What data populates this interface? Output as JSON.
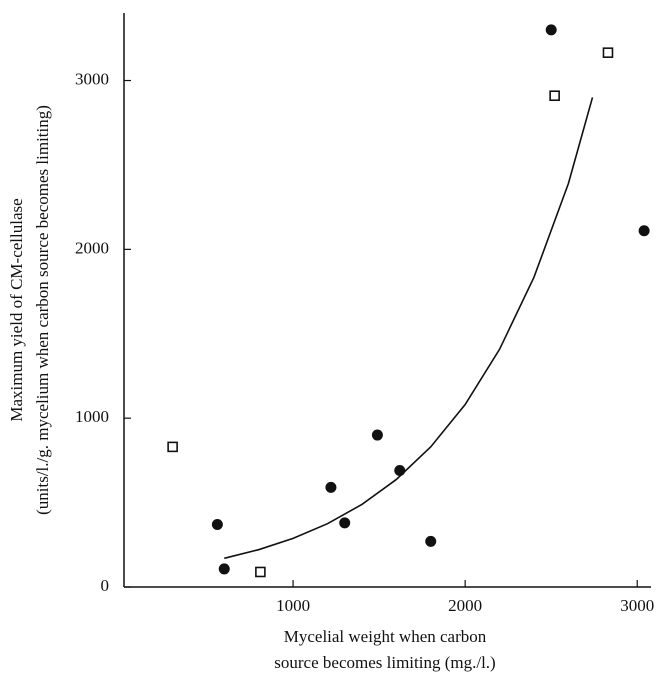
{
  "chart_data": {
    "type": "scatter",
    "xlabel": [
      "Mycelial weight when carbon",
      "source becomes limiting (mg./l.)"
    ],
    "ylabel": [
      "Maximum yield of CM-cellulase",
      "(units/l./g. mycelium when carbon source becomes limiting)"
    ],
    "xlim": [
      0,
      3080
    ],
    "ylim": [
      0,
      3400
    ],
    "xticks": [
      1000,
      2000,
      3000
    ],
    "yticks": [
      0,
      1000,
      2000,
      3000
    ],
    "color": "#111111",
    "series": [
      {
        "marker": "circle",
        "x": [
          2500,
          3040,
          1490,
          1620,
          1220,
          1300,
          560,
          600,
          1800
        ],
        "values": [
          3300,
          2110,
          900,
          690,
          590,
          380,
          370,
          107,
          270
        ]
      },
      {
        "marker": "square",
        "x": [
          300,
          810,
          2520,
          2830
        ],
        "values": [
          830,
          89,
          2910,
          3165
        ]
      },
      {
        "marker": "line",
        "x": [
          600,
          800,
          1000,
          1200,
          1400,
          1600,
          1800,
          2000,
          2200,
          2400,
          2600,
          2740
        ],
        "values": [
          170,
          221,
          288,
          375,
          489,
          637,
          830,
          1081,
          1408,
          1835,
          2390,
          2900
        ]
      }
    ]
  }
}
